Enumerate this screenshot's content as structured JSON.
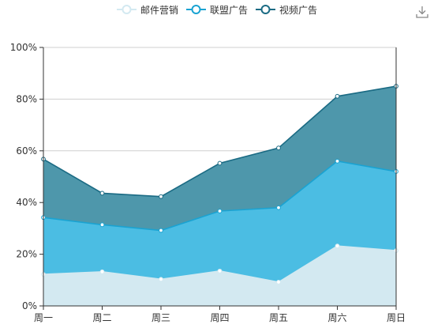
{
  "colors": {
    "email": "#d3e9f1",
    "email_line": "#d3e9f1",
    "union": "#4bbde3",
    "union_line": "#1aa3d2",
    "video": "#4e97ab",
    "video_line": "#1b6b84",
    "axis": "#333333",
    "grid": "#cfcfcf"
  },
  "toolbar": {
    "download_icon": "download-icon"
  },
  "chart_data": {
    "type": "area",
    "stacked": true,
    "categories": [
      "周一",
      "周二",
      "周三",
      "周四",
      "周五",
      "周六",
      "周日"
    ],
    "series": [
      {
        "name": "邮件营销",
        "values": [
          12.2,
          13.2,
          10.3,
          13.5,
          9.2,
          23.2,
          21.4
        ]
      },
      {
        "name": "联盟广告",
        "values": [
          22.0,
          18.2,
          18.9,
          23.2,
          28.8,
          32.8,
          30.6
        ]
      },
      {
        "name": "视频广告",
        "values": [
          22.6,
          12.2,
          13.1,
          18.5,
          23.1,
          25.1,
          33.0
        ]
      }
    ],
    "ylim": [
      0,
      100
    ],
    "yticks": [
      "0%",
      "20%",
      "40%",
      "60%",
      "80%",
      "100%"
    ],
    "grid": true,
    "legend_position": "top-center"
  }
}
